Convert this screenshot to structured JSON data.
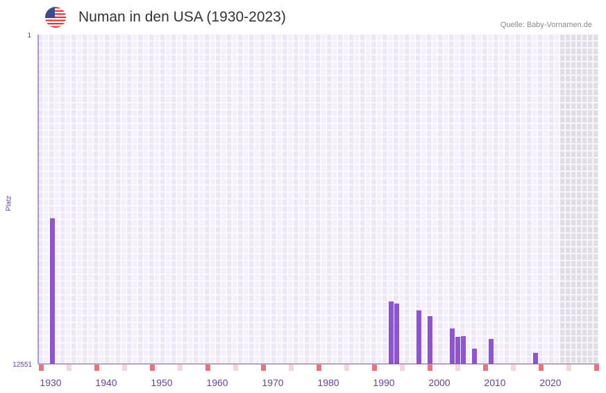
{
  "header": {
    "title": "Numan in den USA (1930-2023)",
    "source": "Quelle: Baby-Vornamen.de",
    "flag_icon": "us-flag-icon"
  },
  "chart_data": {
    "type": "bar",
    "title": "Numan in den USA (1930-2023)",
    "xlabel": "",
    "ylabel": "Platz",
    "y_axis_reversed": true,
    "ylim": [
      1,
      12551
    ],
    "y_tick_labels": [
      "1",
      "12551"
    ],
    "xlim": [
      1928,
      2028
    ],
    "x_tick_labels": [
      "1930",
      "1940",
      "1950",
      "1960",
      "1970",
      "1980",
      "1990",
      "2000",
      "2010",
      "2020"
    ],
    "x_ticks": [
      1930,
      1940,
      1950,
      1960,
      1970,
      1980,
      1990,
      2000,
      2010,
      2020
    ],
    "shaded_from_year": 2022,
    "grid": true,
    "bars": [
      {
        "year": 1930,
        "rank": 7000
      },
      {
        "year": 1991,
        "rank": 10170
      },
      {
        "year": 1992,
        "rank": 10250
      },
      {
        "year": 1996,
        "rank": 10510
      },
      {
        "year": 1998,
        "rank": 10730
      },
      {
        "year": 2002,
        "rank": 11200
      },
      {
        "year": 2003,
        "rank": 11520
      },
      {
        "year": 2004,
        "rank": 11490
      },
      {
        "year": 2006,
        "rank": 11970
      },
      {
        "year": 2009,
        "rank": 11600
      },
      {
        "year": 2017,
        "rank": 12130
      }
    ],
    "colors": {
      "bar": "#8e56c8",
      "axis": "#6a3fa0",
      "marker_strong": "#e8737a",
      "marker_light": "#f5d5dd",
      "grid_a": "#f3effc",
      "grid_b": "#ebe6f8",
      "shade": "#e2dcea"
    }
  }
}
